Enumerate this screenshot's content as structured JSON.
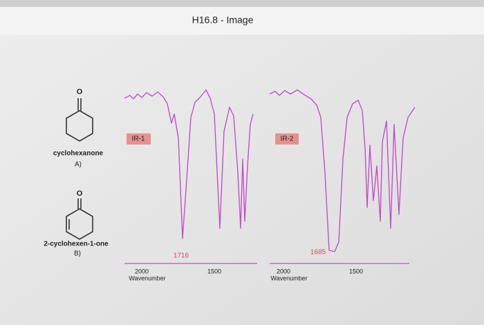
{
  "header": {
    "title": "H16.8 - Image"
  },
  "molecules": [
    {
      "atom": "O",
      "name": "cyclohexanone",
      "letter": "A)"
    },
    {
      "atom": "O",
      "name": "2-cyclohexen-1-one",
      "letter": "B)"
    }
  ],
  "spectra": [
    {
      "label": "IR-1",
      "peak_label": 1716,
      "ticks": [
        2000,
        1500
      ],
      "axis_label": "Wavenumber"
    },
    {
      "label": "IR-2",
      "peak_label": 1685,
      "ticks": [
        2000,
        1500
      ],
      "axis_label": "Wavenumber"
    }
  ]
}
